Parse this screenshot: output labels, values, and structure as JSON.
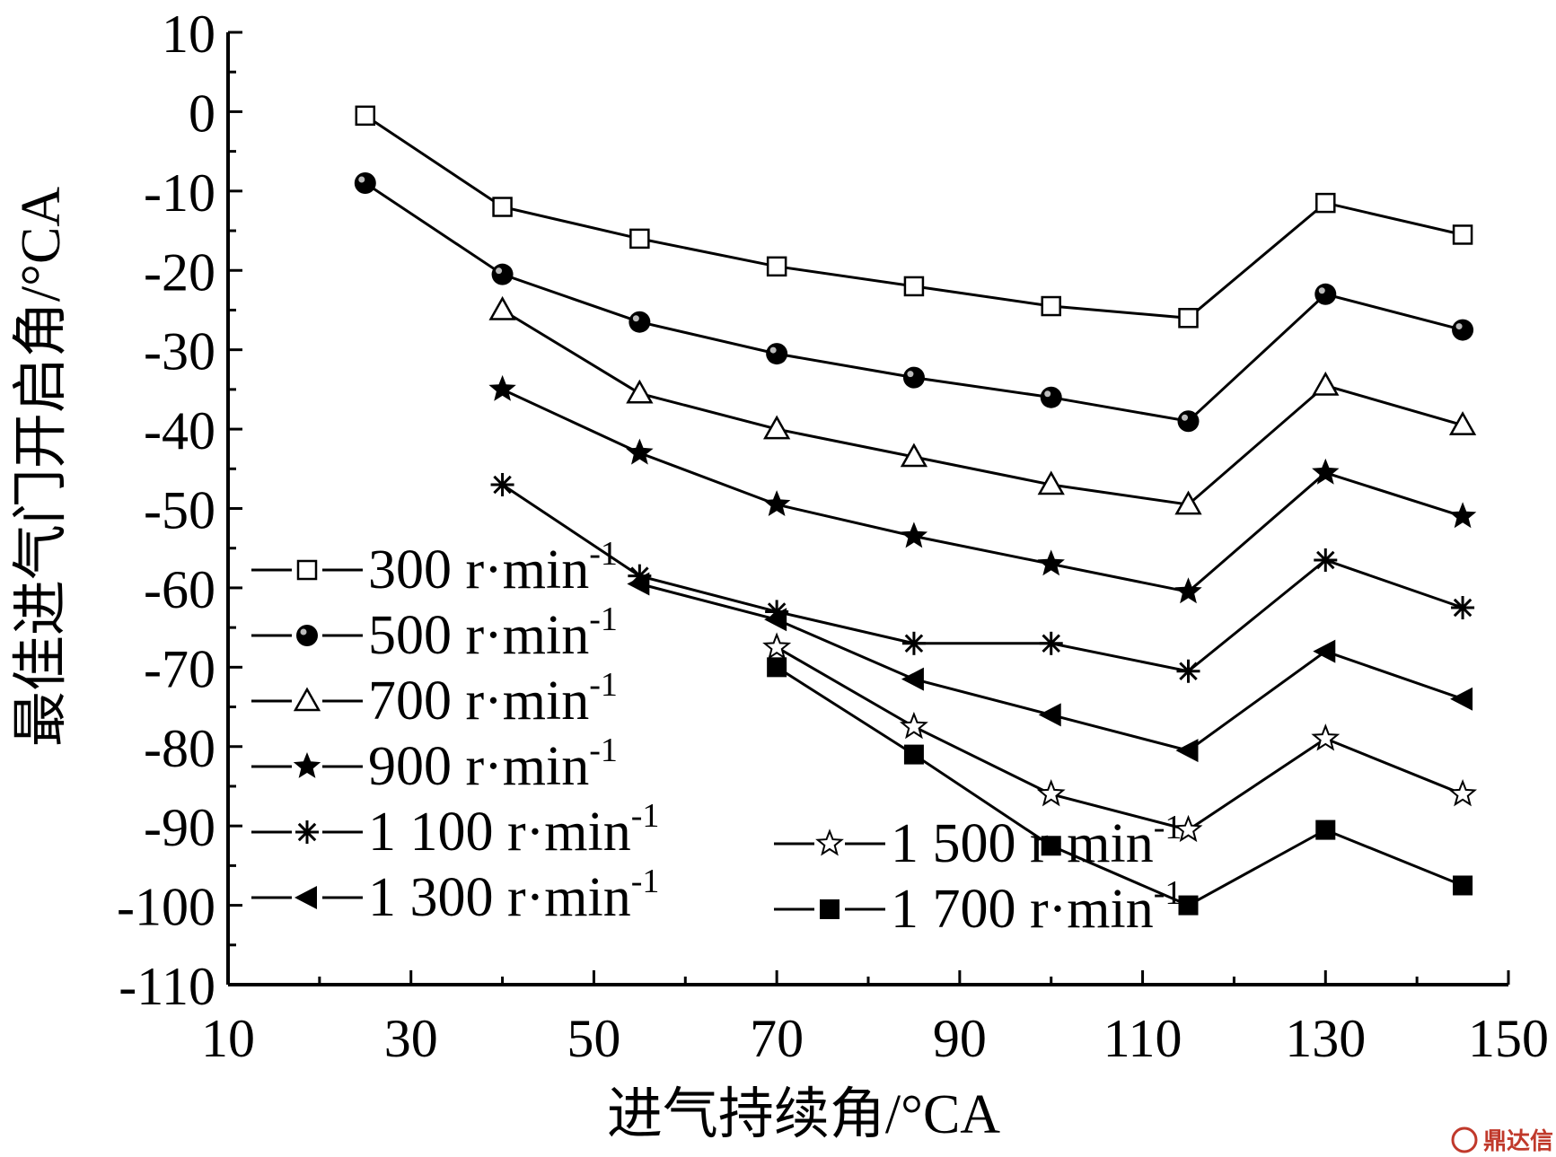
{
  "chart_data": {
    "type": "line",
    "xlabel": "进气持续角/°CA",
    "ylabel": "最佳进气门开启角/°CA",
    "xlim": [
      10,
      150
    ],
    "ylim": [
      -110,
      10
    ],
    "xticks": [
      10,
      30,
      50,
      70,
      90,
      110,
      130,
      150
    ],
    "yticks": [
      10,
      0,
      -10,
      -20,
      -30,
      -40,
      -50,
      -60,
      -70,
      -80,
      -90,
      -100,
      -110
    ],
    "grid": false,
    "legend_placement": "lower-left",
    "series": [
      {
        "name": "300 r·min",
        "unit_sup": "-1",
        "marker": "square-open",
        "x": [
          25,
          40,
          55,
          70,
          85,
          100,
          115,
          130,
          145
        ],
        "y": [
          -0.5,
          -12,
          -16,
          -19.5,
          -22,
          -24.5,
          -26,
          -11.5,
          -15.5
        ]
      },
      {
        "name": "500 r·min",
        "unit_sup": "-1",
        "marker": "circle-filled",
        "x": [
          25,
          40,
          55,
          70,
          85,
          100,
          115,
          130,
          145
        ],
        "y": [
          -9,
          -20.5,
          -26.5,
          -30.5,
          -33.5,
          -36,
          -39,
          -23,
          -27.5
        ]
      },
      {
        "name": "700 r·min",
        "unit_sup": "-1",
        "marker": "triangle-open",
        "x": [
          40,
          55,
          70,
          85,
          100,
          115,
          130,
          145
        ],
        "y": [
          -25,
          -35.5,
          -40,
          -43.5,
          -47,
          -49.5,
          -34.5,
          -39.5
        ]
      },
      {
        "name": "900 r·min",
        "unit_sup": "-1",
        "marker": "star-filled",
        "x": [
          40,
          55,
          70,
          85,
          100,
          115,
          130,
          145
        ],
        "y": [
          -35,
          -43,
          -49.5,
          -53.5,
          -57,
          -60.5,
          -45.5,
          -51
        ]
      },
      {
        "name": "1 100 r·min",
        "unit_sup": "-1",
        "marker": "asterisk",
        "x": [
          40,
          55,
          70,
          85,
          100,
          115,
          130,
          145
        ],
        "y": [
          -47,
          -58.5,
          -63,
          -67,
          -67,
          -70.5,
          -56.5,
          -62.5
        ]
      },
      {
        "name": "1 300 r·min",
        "unit_sup": "-1",
        "marker": "triangle-left-filled",
        "x": [
          55,
          70,
          85,
          100,
          115,
          130,
          145
        ],
        "y": [
          -59.5,
          -64,
          -71.5,
          -76,
          -80.5,
          -68,
          -74
        ]
      },
      {
        "name": "1 500 r·min",
        "unit_sup": "-1",
        "marker": "star-open",
        "x": [
          70,
          85,
          100,
          115,
          130,
          145
        ],
        "y": [
          -67.5,
          -77.5,
          -86,
          -90.5,
          -79,
          -86
        ]
      },
      {
        "name": "1 700 r·min",
        "unit_sup": "-1",
        "marker": "square-filled",
        "x": [
          70,
          85,
          100,
          115,
          130,
          145
        ],
        "y": [
          -70,
          -81,
          -92.5,
          -100,
          -90.5,
          -97.5
        ]
      }
    ]
  },
  "watermark": {
    "text": "鼎达信",
    "color": "#c0392b"
  }
}
